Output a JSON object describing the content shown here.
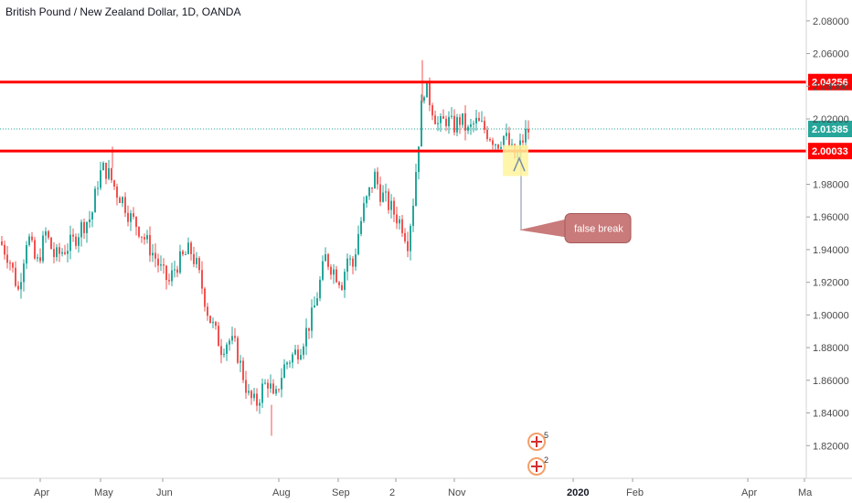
{
  "title": "British Pound / New Zealand Dollar, 1D, OANDA",
  "colors": {
    "up": "#26a69a",
    "down": "#ef5350",
    "level": "#ff0000",
    "current": "#26a69a",
    "callout": "#c97a7a",
    "highlight": "#fff59d",
    "arrow": "#7b8ea8"
  },
  "chart_data": {
    "type": "candlestick",
    "ylim": [
      1.8,
      2.09
    ],
    "y_ticks": [
      "2.08000",
      "2.06000",
      "2.04000",
      "2.02000",
      "1.98000",
      "1.96000",
      "1.94000",
      "1.92000",
      "1.90000",
      "1.88000",
      "1.86000",
      "1.84000",
      "1.82000"
    ],
    "x_ticks": [
      {
        "label": "Apr",
        "bold": false
      },
      {
        "label": "May",
        "bold": false
      },
      {
        "label": "Jun",
        "bold": false
      },
      {
        "label": "Aug",
        "bold": false
      },
      {
        "label": "Sep",
        "bold": false
      },
      {
        "label": "2",
        "bold": false
      },
      {
        "label": "Nov",
        "bold": false
      },
      {
        "label": "2020",
        "bold": true
      },
      {
        "label": "Feb",
        "bold": false
      },
      {
        "label": "Apr",
        "bold": false
      },
      {
        "label": "Ma",
        "bold": false
      }
    ],
    "horizontal_levels": [
      {
        "label": "2.04256",
        "value": 2.04256
      },
      {
        "label": "2.00033",
        "value": 2.00033
      }
    ],
    "current_price": {
      "label": "2.01385",
      "value": 2.01385
    },
    "annotation": {
      "text": "false break",
      "value": 1.952
    },
    "badges": [
      {
        "text": "5"
      },
      {
        "text": "2"
      }
    ],
    "path": [
      [
        0,
        1.945
      ],
      [
        10,
        1.935
      ],
      [
        20,
        1.915
      ],
      [
        30,
        1.95
      ],
      [
        40,
        1.93
      ],
      [
        50,
        1.95
      ],
      [
        60,
        1.935
      ],
      [
        70,
        1.94
      ],
      [
        80,
        1.945
      ],
      [
        90,
        1.955
      ],
      [
        100,
        1.96
      ],
      [
        108,
        1.985
      ],
      [
        114,
        1.99
      ],
      [
        120,
        1.985
      ],
      [
        128,
        1.975
      ],
      [
        135,
        1.97
      ],
      [
        142,
        1.96
      ],
      [
        150,
        1.955
      ],
      [
        160,
        1.945
      ],
      [
        170,
        1.935
      ],
      [
        178,
        1.925
      ],
      [
        185,
        1.92
      ],
      [
        192,
        1.93
      ],
      [
        200,
        1.935
      ],
      [
        208,
        1.94
      ],
      [
        215,
        1.93
      ],
      [
        222,
        1.915
      ],
      [
        228,
        1.9
      ],
      [
        235,
        1.89
      ],
      [
        242,
        1.88
      ],
      [
        250,
        1.885
      ],
      [
        258,
        1.88
      ],
      [
        265,
        1.865
      ],
      [
        272,
        1.85
      ],
      [
        280,
        1.845
      ],
      [
        287,
        1.855
      ],
      [
        294,
        1.86
      ],
      [
        300,
        1.845
      ],
      [
        306,
        1.86
      ],
      [
        312,
        1.87
      ],
      [
        320,
        1.875
      ],
      [
        328,
        1.88
      ],
      [
        335,
        1.89
      ],
      [
        342,
        1.9
      ],
      [
        350,
        1.92
      ],
      [
        356,
        1.935
      ],
      [
        362,
        1.93
      ],
      [
        368,
        1.925
      ],
      [
        374,
        1.92
      ],
      [
        380,
        1.935
      ],
      [
        386,
        1.93
      ],
      [
        392,
        1.95
      ],
      [
        398,
        1.965
      ],
      [
        404,
        1.975
      ],
      [
        410,
        1.985
      ],
      [
        416,
        1.975
      ],
      [
        422,
        1.97
      ],
      [
        428,
        1.965
      ],
      [
        434,
        1.96
      ],
      [
        440,
        1.955
      ],
      [
        446,
        1.945
      ],
      [
        452,
        1.97
      ],
      [
        456,
        1.995
      ],
      [
        460,
        2.02
      ],
      [
        463,
        2.04
      ],
      [
        468,
        2.035
      ],
      [
        474,
        2.025
      ],
      [
        480,
        2.015
      ],
      [
        488,
        2.02
      ],
      [
        496,
        2.015
      ],
      [
        504,
        2.02
      ],
      [
        512,
        2.012
      ],
      [
        520,
        2.018
      ],
      [
        528,
        2.015
      ],
      [
        536,
        2.01
      ],
      [
        544,
        2.005
      ],
      [
        552,
        2.01
      ],
      [
        558,
        2.002
      ],
      [
        564,
        1.995
      ],
      [
        570,
        2.005
      ],
      [
        576,
        2.012
      ],
      [
        580,
        2.014
      ]
    ]
  }
}
